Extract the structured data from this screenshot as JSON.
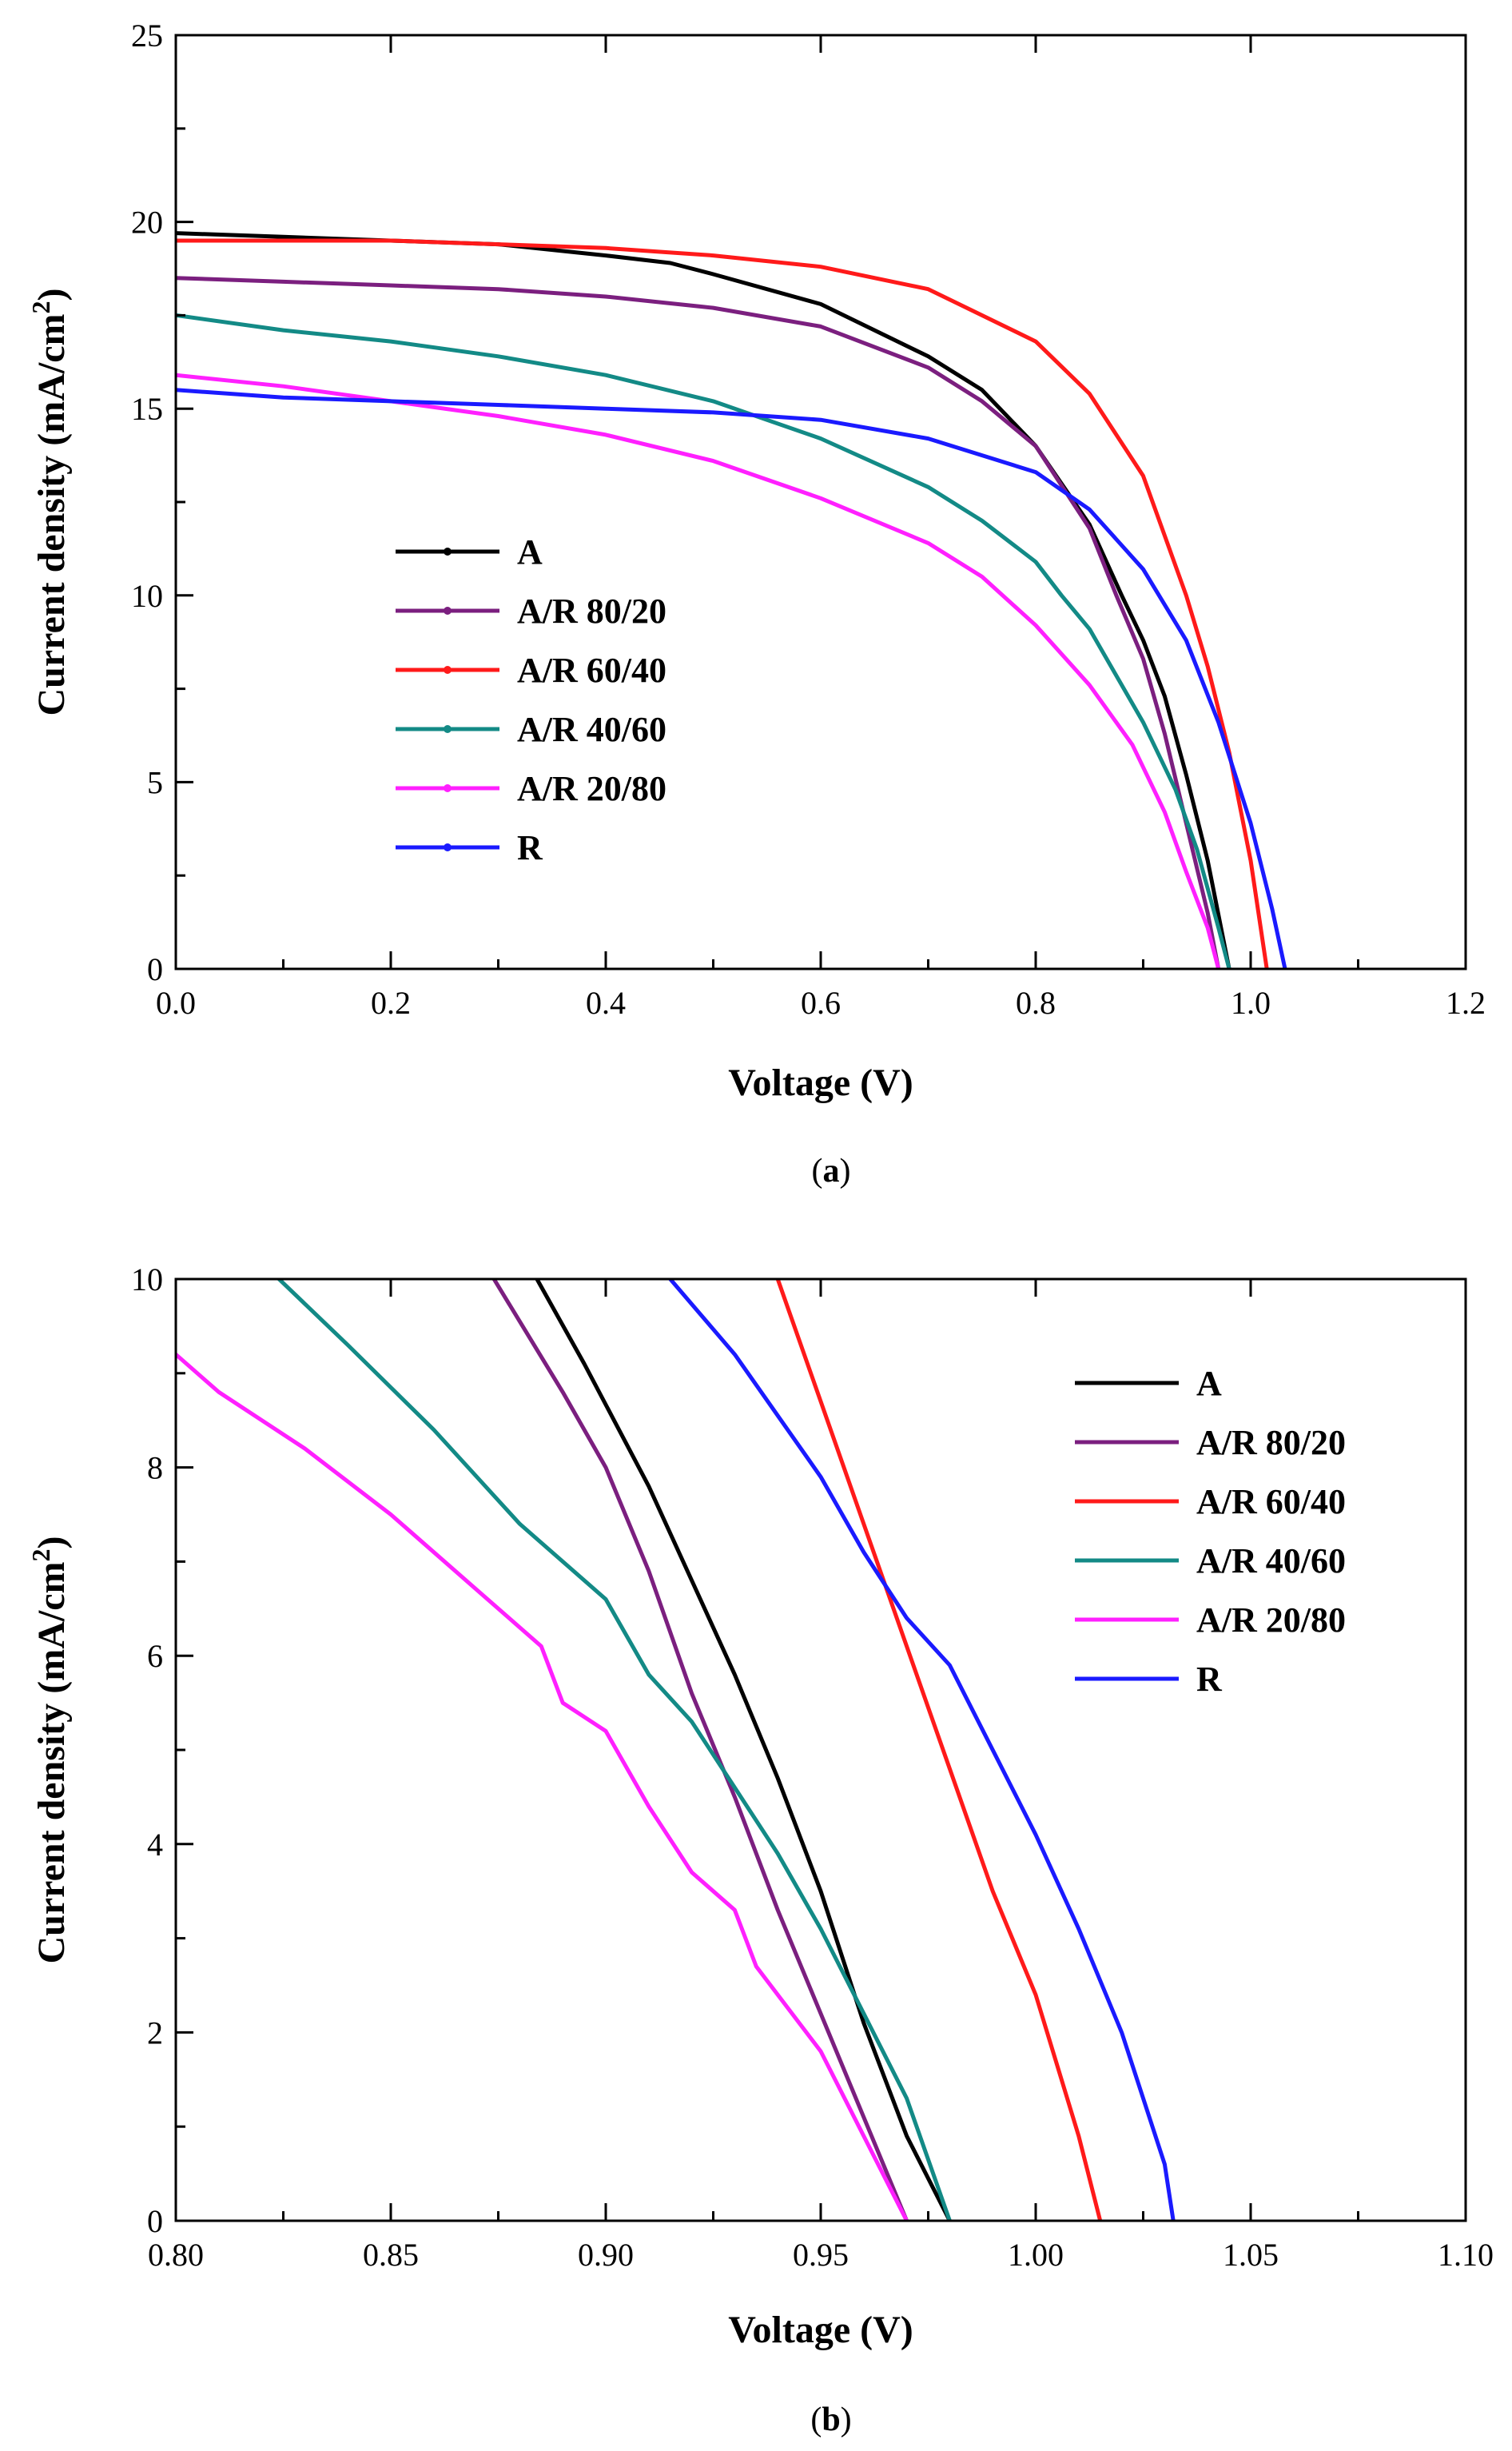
{
  "chart_data": [
    {
      "type": "line",
      "panel": "a",
      "caption_open": "(",
      "caption_letter": "a",
      "caption_close": ")",
      "xlabel": "Voltage (V)",
      "ylabel": "Current density (mA/cm",
      "ylabel_sup": "2",
      "ylabel_close": ")",
      "xlim": [
        0.0,
        1.2
      ],
      "ylim": [
        0,
        25
      ],
      "xticks": [
        0.0,
        0.2,
        0.4,
        0.6,
        0.8,
        1.0,
        1.2
      ],
      "xtick_labels": [
        "0.0",
        "0.2",
        "0.4",
        "0.6",
        "0.8",
        "1.0",
        "1.2"
      ],
      "yticks": [
        0,
        5,
        10,
        15,
        20,
        25
      ],
      "ytick_labels": [
        "0",
        "5",
        "10",
        "15",
        "20",
        "25"
      ],
      "legend_position": "center-left",
      "series": [
        {
          "name": "A",
          "color": "#000000",
          "points": [
            [
              0.0,
              19.7
            ],
            [
              0.1,
              19.6
            ],
            [
              0.2,
              19.5
            ],
            [
              0.3,
              19.4
            ],
            [
              0.4,
              19.1
            ],
            [
              0.46,
              18.9
            ],
            [
              0.5,
              18.6
            ],
            [
              0.6,
              17.8
            ],
            [
              0.7,
              16.4
            ],
            [
              0.75,
              15.5
            ],
            [
              0.8,
              14.0
            ],
            [
              0.85,
              11.9
            ],
            [
              0.88,
              10.0
            ],
            [
              0.9,
              8.8
            ],
            [
              0.92,
              7.3
            ],
            [
              0.94,
              5.2
            ],
            [
              0.96,
              2.9
            ],
            [
              0.98,
              0.0
            ]
          ]
        },
        {
          "name": "A/R 80/20",
          "color": "#7b1f7f",
          "points": [
            [
              0.0,
              18.5
            ],
            [
              0.1,
              18.4
            ],
            [
              0.2,
              18.3
            ],
            [
              0.3,
              18.2
            ],
            [
              0.4,
              18.0
            ],
            [
              0.5,
              17.7
            ],
            [
              0.6,
              17.2
            ],
            [
              0.7,
              16.1
            ],
            [
              0.75,
              15.2
            ],
            [
              0.8,
              14.0
            ],
            [
              0.85,
              11.8
            ],
            [
              0.875,
              10.0
            ],
            [
              0.9,
              8.3
            ],
            [
              0.92,
              6.3
            ],
            [
              0.94,
              3.9
            ],
            [
              0.96,
              1.5
            ],
            [
              0.97,
              0.0
            ]
          ]
        },
        {
          "name": "A/R 60/40",
          "color": "#ff1a1a",
          "points": [
            [
              0.0,
              19.5
            ],
            [
              0.1,
              19.5
            ],
            [
              0.2,
              19.5
            ],
            [
              0.3,
              19.4
            ],
            [
              0.4,
              19.3
            ],
            [
              0.5,
              19.1
            ],
            [
              0.6,
              18.8
            ],
            [
              0.7,
              18.2
            ],
            [
              0.8,
              16.8
            ],
            [
              0.85,
              15.4
            ],
            [
              0.9,
              13.2
            ],
            [
              0.94,
              10.0
            ],
            [
              0.96,
              8.1
            ],
            [
              0.98,
              5.8
            ],
            [
              1.0,
              2.9
            ],
            [
              1.015,
              0.0
            ]
          ]
        },
        {
          "name": "A/R 40/60",
          "color": "#138a86",
          "points": [
            [
              0.0,
              17.5
            ],
            [
              0.1,
              17.1
            ],
            [
              0.2,
              16.8
            ],
            [
              0.3,
              16.4
            ],
            [
              0.4,
              15.9
            ],
            [
              0.5,
              15.2
            ],
            [
              0.6,
              14.2
            ],
            [
              0.7,
              12.9
            ],
            [
              0.75,
              12.0
            ],
            [
              0.8,
              10.9
            ],
            [
              0.824,
              10.0
            ],
            [
              0.85,
              9.1
            ],
            [
              0.9,
              6.6
            ],
            [
              0.93,
              4.8
            ],
            [
              0.95,
              3.2
            ],
            [
              0.97,
              1.1
            ],
            [
              0.98,
              0.0
            ]
          ]
        },
        {
          "name": "A/R 20/80",
          "color": "#ff20ff",
          "points": [
            [
              0.0,
              15.9
            ],
            [
              0.1,
              15.6
            ],
            [
              0.2,
              15.2
            ],
            [
              0.3,
              14.8
            ],
            [
              0.4,
              14.3
            ],
            [
              0.5,
              13.6
            ],
            [
              0.6,
              12.6
            ],
            [
              0.7,
              11.4
            ],
            [
              0.75,
              10.5
            ],
            [
              0.8,
              9.2
            ],
            [
              0.85,
              7.6
            ],
            [
              0.89,
              6.0
            ],
            [
              0.92,
              4.2
            ],
            [
              0.94,
              2.6
            ],
            [
              0.96,
              1.1
            ],
            [
              0.97,
              0.0
            ]
          ]
        },
        {
          "name": "R",
          "color": "#1a1aff",
          "points": [
            [
              0.0,
              15.5
            ],
            [
              0.1,
              15.3
            ],
            [
              0.2,
              15.2
            ],
            [
              0.3,
              15.1
            ],
            [
              0.4,
              15.0
            ],
            [
              0.5,
              14.9
            ],
            [
              0.6,
              14.7
            ],
            [
              0.7,
              14.2
            ],
            [
              0.8,
              13.3
            ],
            [
              0.85,
              12.3
            ],
            [
              0.9,
              10.7
            ],
            [
              0.94,
              8.8
            ],
            [
              0.97,
              6.6
            ],
            [
              1.0,
              3.9
            ],
            [
              1.02,
              1.6
            ],
            [
              1.032,
              0.0
            ]
          ]
        }
      ]
    },
    {
      "type": "line",
      "panel": "b",
      "caption_open": "(",
      "caption_letter": "b",
      "caption_close": ")",
      "xlabel": "Voltage (V)",
      "ylabel": "Current density (mA/cm",
      "ylabel_sup": "2",
      "ylabel_close": ")",
      "xlim": [
        0.8,
        1.1
      ],
      "ylim": [
        0,
        10
      ],
      "xticks": [
        0.8,
        0.85,
        0.9,
        0.95,
        1.0,
        1.05,
        1.1
      ],
      "xtick_labels": [
        "0.80",
        "0.85",
        "0.90",
        "0.95",
        "1.00",
        "1.05",
        "1.10"
      ],
      "yticks": [
        0,
        2,
        4,
        6,
        8,
        10
      ],
      "ytick_labels": [
        "0",
        "2",
        "4",
        "6",
        "8",
        "10"
      ],
      "legend_position": "top-right",
      "series": [
        {
          "name": "A",
          "color": "#000000",
          "points": [
            [
              0.884,
              10.0
            ],
            [
              0.895,
              9.1
            ],
            [
              0.91,
              7.8
            ],
            [
              0.92,
              6.8
            ],
            [
              0.93,
              5.8
            ],
            [
              0.94,
              4.7
            ],
            [
              0.95,
              3.5
            ],
            [
              0.96,
              2.1
            ],
            [
              0.97,
              0.9
            ],
            [
              0.98,
              0.0
            ]
          ]
        },
        {
          "name": "A/R 80/20",
          "color": "#7b1f7f",
          "points": [
            [
              0.874,
              10.0
            ],
            [
              0.89,
              8.8
            ],
            [
              0.9,
              8.0
            ],
            [
              0.91,
              6.9
            ],
            [
              0.92,
              5.6
            ],
            [
              0.93,
              4.5
            ],
            [
              0.94,
              3.3
            ],
            [
              0.95,
              2.2
            ],
            [
              0.96,
              1.1
            ],
            [
              0.97,
              0.0
            ]
          ]
        },
        {
          "name": "A/R 60/40",
          "color": "#ff1a1a",
          "points": [
            [
              0.94,
              10.0
            ],
            [
              0.95,
              8.7
            ],
            [
              0.96,
              7.4
            ],
            [
              0.97,
              6.1
            ],
            [
              0.98,
              4.8
            ],
            [
              0.99,
              3.5
            ],
            [
              1.0,
              2.4
            ],
            [
              1.01,
              0.9
            ],
            [
              1.015,
              0.0
            ]
          ]
        },
        {
          "name": "A/R 40/60",
          "color": "#138a86",
          "points": [
            [
              0.824,
              10.0
            ],
            [
              0.84,
              9.3
            ],
            [
              0.86,
              8.4
            ],
            [
              0.88,
              7.4
            ],
            [
              0.9,
              6.6
            ],
            [
              0.91,
              5.8
            ],
            [
              0.92,
              5.3
            ],
            [
              0.93,
              4.6
            ],
            [
              0.94,
              3.9
            ],
            [
              0.95,
              3.1
            ],
            [
              0.96,
              2.2
            ],
            [
              0.97,
              1.3
            ],
            [
              0.98,
              0.0
            ]
          ]
        },
        {
          "name": "A/R 20/80",
          "color": "#ff20ff",
          "points": [
            [
              0.8,
              9.2
            ],
            [
              0.81,
              8.8
            ],
            [
              0.83,
              8.2
            ],
            [
              0.85,
              7.5
            ],
            [
              0.87,
              6.7
            ],
            [
              0.885,
              6.1
            ],
            [
              0.89,
              5.5
            ],
            [
              0.9,
              5.2
            ],
            [
              0.91,
              4.4
            ],
            [
              0.92,
              3.7
            ],
            [
              0.93,
              3.3
            ],
            [
              0.935,
              2.7
            ],
            [
              0.95,
              1.8
            ],
            [
              0.96,
              0.9
            ],
            [
              0.97,
              0.0
            ]
          ]
        },
        {
          "name": "R",
          "color": "#1a1aff",
          "points": [
            [
              0.915,
              10.0
            ],
            [
              0.93,
              9.2
            ],
            [
              0.95,
              7.9
            ],
            [
              0.96,
              7.1
            ],
            [
              0.97,
              6.4
            ],
            [
              0.98,
              5.9
            ],
            [
              0.99,
              5.0
            ],
            [
              1.0,
              4.1
            ],
            [
              1.01,
              3.1
            ],
            [
              1.02,
              2.0
            ],
            [
              1.03,
              0.6
            ],
            [
              1.032,
              0.0
            ]
          ]
        }
      ]
    }
  ]
}
